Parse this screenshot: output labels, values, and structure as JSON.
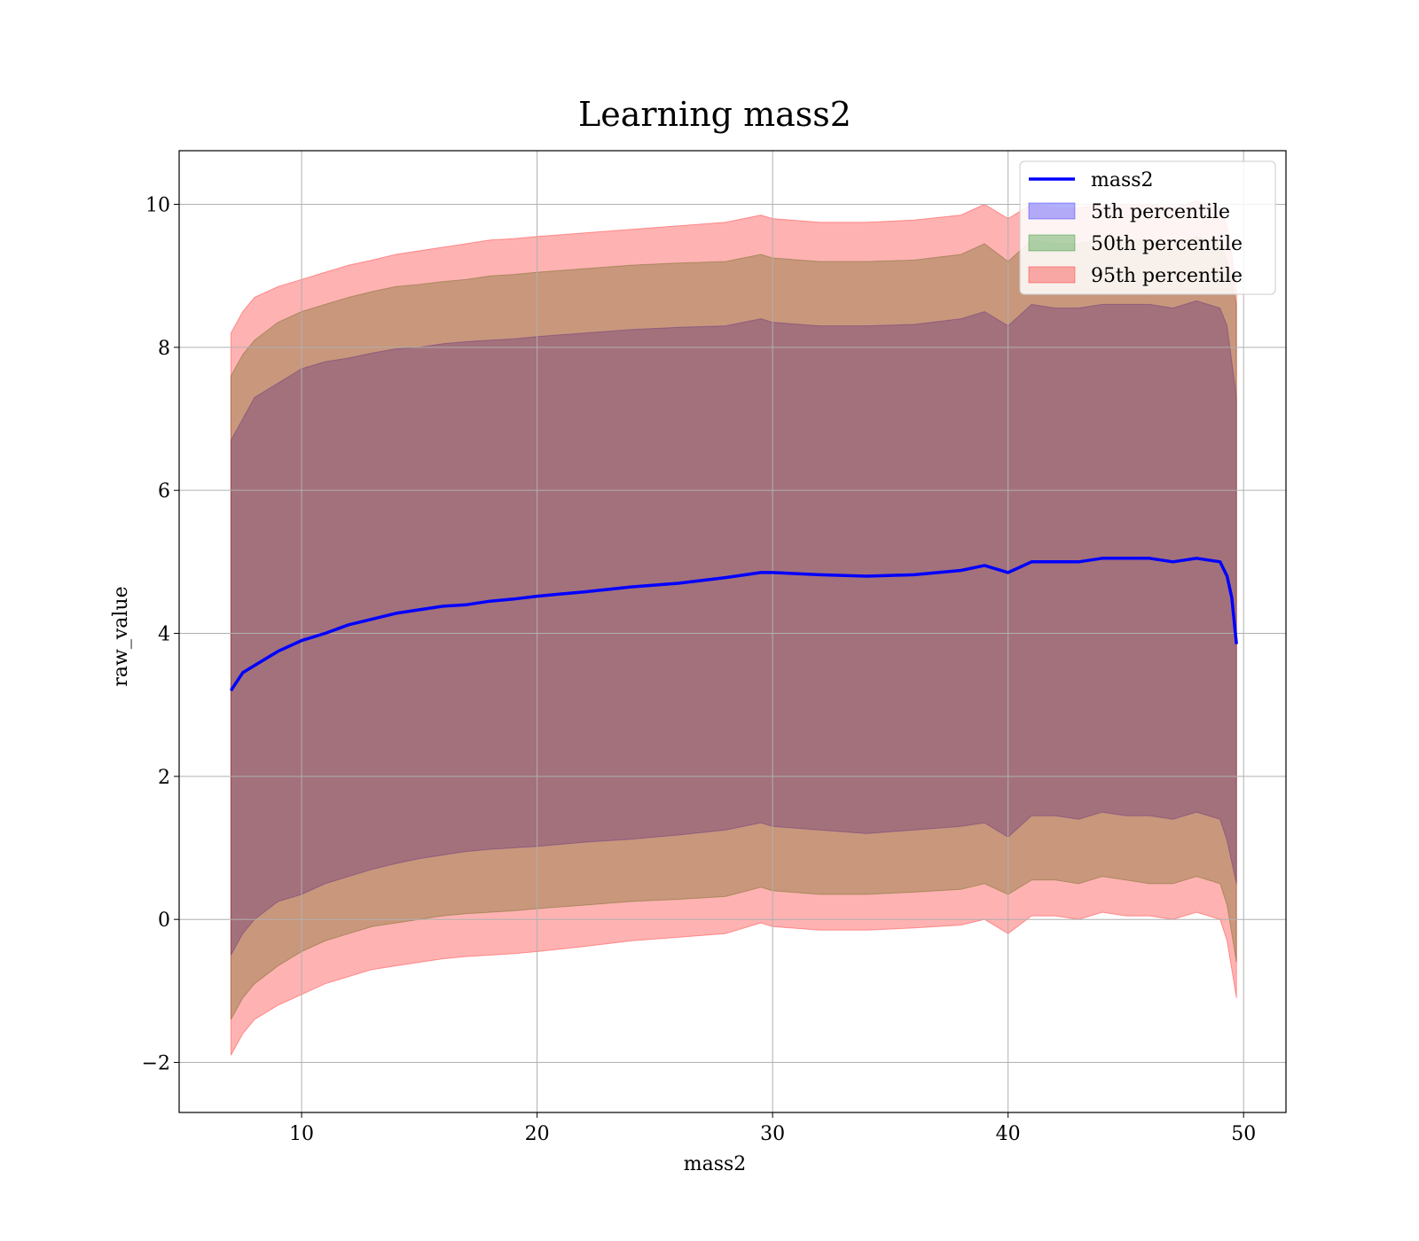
{
  "chart_data": {
    "type": "line",
    "title": "Learning mass2",
    "xlabel": "mass2",
    "ylabel": "raw_value",
    "xlim": [
      4.8,
      51.8
    ],
    "ylim": [
      -2.7,
      10.75
    ],
    "xticks": [
      10,
      20,
      30,
      40,
      50
    ],
    "xtick_labels": [
      "10",
      "20",
      "30",
      "40",
      "50"
    ],
    "yticks": [
      -2,
      0,
      2,
      4,
      6,
      8,
      10
    ],
    "ytick_labels": [
      "−2",
      "0",
      "2",
      "4",
      "6",
      "8",
      "10"
    ],
    "grid": true,
    "legend_position": "top-right",
    "median_line": {
      "name": "mass2",
      "color": "#0000ff",
      "x": [
        7.0,
        7.5,
        8.0,
        9.0,
        10.0,
        11.0,
        12.0,
        13.0,
        14.0,
        15.0,
        16.0,
        17.0,
        18.0,
        19.0,
        20.0,
        22.0,
        24.0,
        26.0,
        28.0,
        29.5,
        30.0,
        32.0,
        34.0,
        36.0,
        38.0,
        39.0,
        40.0,
        41.0,
        42.0,
        43.0,
        44.0,
        45.0,
        46.0,
        47.0,
        48.0,
        49.0,
        49.3,
        49.5,
        49.7
      ],
      "y": [
        3.2,
        3.45,
        3.55,
        3.75,
        3.9,
        4.0,
        4.12,
        4.2,
        4.28,
        4.33,
        4.38,
        4.4,
        4.45,
        4.48,
        4.52,
        4.58,
        4.65,
        4.7,
        4.78,
        4.85,
        4.85,
        4.82,
        4.8,
        4.82,
        4.88,
        4.95,
        4.85,
        5.0,
        5.0,
        5.0,
        5.05,
        5.05,
        5.05,
        5.0,
        5.05,
        5.0,
        4.8,
        4.5,
        3.85
      ]
    },
    "bands": [
      {
        "name": "5th percentile",
        "color": "#0000ff",
        "opacity": 0.3,
        "x": [
          7.0,
          7.5,
          8.0,
          9.0,
          10.0,
          11.0,
          12.0,
          13.0,
          14.0,
          15.0,
          16.0,
          17.0,
          18.0,
          19.0,
          20.0,
          22.0,
          24.0,
          26.0,
          28.0,
          29.5,
          30.0,
          32.0,
          34.0,
          36.0,
          38.0,
          39.0,
          40.0,
          41.0,
          42.0,
          43.0,
          44.0,
          45.0,
          46.0,
          47.0,
          48.0,
          49.0,
          49.3,
          49.5,
          49.7
        ],
        "lower": [
          -0.5,
          -0.2,
          0.0,
          0.25,
          0.35,
          0.5,
          0.6,
          0.7,
          0.78,
          0.85,
          0.9,
          0.95,
          0.98,
          1.0,
          1.02,
          1.08,
          1.12,
          1.18,
          1.25,
          1.35,
          1.3,
          1.25,
          1.2,
          1.25,
          1.3,
          1.35,
          1.15,
          1.45,
          1.45,
          1.4,
          1.5,
          1.45,
          1.45,
          1.4,
          1.5,
          1.4,
          1.1,
          0.8,
          0.5
        ],
        "upper": [
          6.7,
          7.0,
          7.3,
          7.5,
          7.7,
          7.8,
          7.85,
          7.92,
          7.98,
          8.0,
          8.05,
          8.08,
          8.1,
          8.12,
          8.15,
          8.2,
          8.25,
          8.28,
          8.3,
          8.4,
          8.35,
          8.3,
          8.3,
          8.32,
          8.4,
          8.5,
          8.3,
          8.6,
          8.55,
          8.55,
          8.6,
          8.6,
          8.6,
          8.55,
          8.65,
          8.55,
          8.3,
          7.8,
          7.3
        ]
      },
      {
        "name": "50th percentile",
        "color": "#008000",
        "opacity": 0.3,
        "x": [
          7.0,
          7.5,
          8.0,
          9.0,
          10.0,
          11.0,
          12.0,
          13.0,
          14.0,
          15.0,
          16.0,
          17.0,
          18.0,
          19.0,
          20.0,
          22.0,
          24.0,
          26.0,
          28.0,
          29.5,
          30.0,
          32.0,
          34.0,
          36.0,
          38.0,
          39.0,
          40.0,
          41.0,
          42.0,
          43.0,
          44.0,
          45.0,
          46.0,
          47.0,
          48.0,
          49.0,
          49.3,
          49.5,
          49.7
        ],
        "lower": [
          -1.4,
          -1.1,
          -0.9,
          -0.65,
          -0.45,
          -0.3,
          -0.2,
          -0.1,
          -0.05,
          0.0,
          0.05,
          0.08,
          0.1,
          0.12,
          0.15,
          0.2,
          0.25,
          0.28,
          0.32,
          0.45,
          0.4,
          0.35,
          0.35,
          0.38,
          0.42,
          0.5,
          0.35,
          0.55,
          0.55,
          0.5,
          0.6,
          0.55,
          0.5,
          0.5,
          0.6,
          0.5,
          0.2,
          -0.2,
          -0.6
        ],
        "upper": [
          7.6,
          7.9,
          8.1,
          8.35,
          8.5,
          8.6,
          8.7,
          8.78,
          8.85,
          8.88,
          8.92,
          8.95,
          9.0,
          9.02,
          9.05,
          9.1,
          9.15,
          9.18,
          9.2,
          9.3,
          9.25,
          9.2,
          9.2,
          9.22,
          9.3,
          9.45,
          9.2,
          9.5,
          9.45,
          9.45,
          9.5,
          9.5,
          9.5,
          9.45,
          9.55,
          9.45,
          9.2,
          8.9,
          8.6
        ]
      },
      {
        "name": "95th percentile",
        "color": "#ff0000",
        "opacity": 0.3,
        "x": [
          7.0,
          7.5,
          8.0,
          9.0,
          10.0,
          11.0,
          12.0,
          13.0,
          14.0,
          15.0,
          16.0,
          17.0,
          18.0,
          19.0,
          20.0,
          22.0,
          24.0,
          26.0,
          28.0,
          29.5,
          30.0,
          32.0,
          34.0,
          36.0,
          38.0,
          39.0,
          40.0,
          41.0,
          42.0,
          43.0,
          44.0,
          45.0,
          46.0,
          47.0,
          48.0,
          49.0,
          49.3,
          49.5,
          49.7
        ],
        "lower": [
          -1.9,
          -1.6,
          -1.4,
          -1.2,
          -1.05,
          -0.9,
          -0.8,
          -0.7,
          -0.65,
          -0.6,
          -0.55,
          -0.52,
          -0.5,
          -0.48,
          -0.45,
          -0.38,
          -0.3,
          -0.25,
          -0.2,
          -0.05,
          -0.1,
          -0.15,
          -0.15,
          -0.12,
          -0.08,
          0.0,
          -0.2,
          0.05,
          0.05,
          0.0,
          0.1,
          0.05,
          0.05,
          0.0,
          0.1,
          0.0,
          -0.3,
          -0.7,
          -1.1
        ],
        "upper": [
          8.2,
          8.5,
          8.7,
          8.85,
          8.95,
          9.05,
          9.15,
          9.22,
          9.3,
          9.35,
          9.4,
          9.45,
          9.5,
          9.52,
          9.55,
          9.6,
          9.65,
          9.7,
          9.75,
          9.85,
          9.8,
          9.75,
          9.75,
          9.78,
          9.85,
          10.0,
          9.8,
          10.0,
          9.95,
          9.95,
          10.0,
          10.0,
          10.0,
          9.95,
          10.05,
          9.95,
          9.7,
          9.3,
          8.8
        ]
      }
    ],
    "legend": [
      {
        "label": "mass2",
        "kind": "line",
        "color": "#0000ff"
      },
      {
        "label": "5th percentile",
        "kind": "patch",
        "color": "#0000ff"
      },
      {
        "label": "50th percentile",
        "kind": "patch",
        "color": "#008000"
      },
      {
        "label": "95th percentile",
        "kind": "patch",
        "color": "#ff0000"
      }
    ]
  }
}
